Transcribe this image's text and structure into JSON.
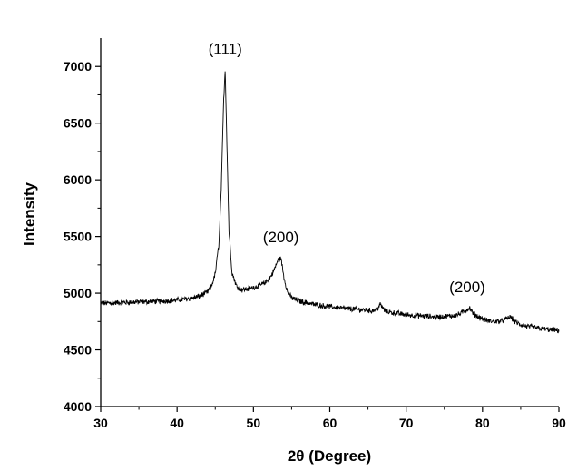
{
  "chart_data": {
    "type": "line",
    "title": "",
    "xlabel": "2θ (Degree)",
    "ylabel": "Intensity",
    "xlim": [
      30,
      90
    ],
    "ylim": [
      4000,
      7250
    ],
    "xticks": [
      30,
      40,
      50,
      60,
      70,
      80,
      90
    ],
    "yticks": [
      4000,
      4500,
      5000,
      5500,
      6000,
      6500,
      7000
    ],
    "grid": false,
    "legend": "none",
    "series_color": "#000000",
    "series": [
      {
        "x": [
          30,
          32,
          34,
          36,
          38,
          40,
          42,
          43,
          44,
          44.5,
          45,
          45.5,
          45.8,
          46.1,
          46.3,
          46.5,
          46.8,
          47.2,
          47.8,
          48.5,
          49.5,
          50.5,
          51.5,
          52.3,
          52.8,
          53.2,
          53.6,
          54.0,
          54.5,
          55.0,
          56,
          58,
          60,
          62,
          64,
          65.5,
          66.2,
          66.6,
          67.2,
          68,
          70,
          72,
          74,
          76,
          77,
          77.8,
          78.3,
          78.8,
          79.5,
          80.5,
          81.5,
          82.5,
          83.3,
          83.7,
          84.2,
          85,
          86,
          87,
          88,
          89,
          90
        ],
        "y": [
          4910,
          4915,
          4920,
          4925,
          4930,
          4940,
          4955,
          4975,
          5010,
          5060,
          5170,
          5450,
          5950,
          6700,
          6980,
          6400,
          5550,
          5180,
          5060,
          5030,
          5040,
          5060,
          5090,
          5150,
          5220,
          5290,
          5310,
          5140,
          5000,
          4960,
          4930,
          4900,
          4880,
          4865,
          4855,
          4845,
          4860,
          4900,
          4845,
          4830,
          4810,
          4800,
          4790,
          4800,
          4815,
          4850,
          4870,
          4820,
          4790,
          4760,
          4750,
          4755,
          4780,
          4790,
          4750,
          4720,
          4705,
          4695,
          4685,
          4675,
          4670
        ]
      }
    ],
    "annotations": [
      {
        "text": "(111)",
        "x": 46.3,
        "y": 7110
      },
      {
        "text": "(200)",
        "x": 53.6,
        "y": 5450
      },
      {
        "text": "(200)",
        "x": 78.0,
        "y": 5010
      }
    ]
  }
}
